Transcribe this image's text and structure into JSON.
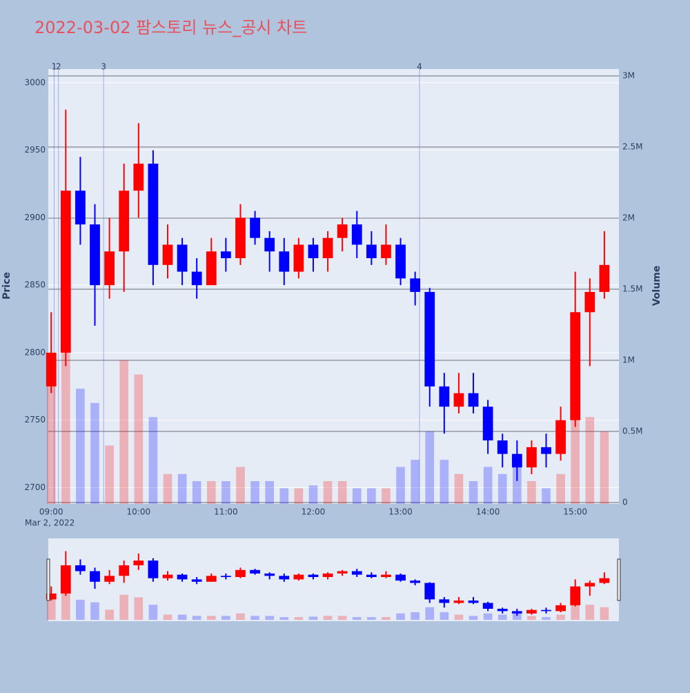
{
  "chart_data": {
    "type": "candlestick",
    "title": "2022-03-02 팜스토리 뉴스_공시 차트",
    "y_label": "Price",
    "y2_label": "Volume",
    "x_date_label": "Mar 2, 2022",
    "x": [
      "09:00",
      "09:10",
      "09:20",
      "09:30",
      "09:40",
      "09:50",
      "10:00",
      "10:10",
      "10:20",
      "10:30",
      "10:40",
      "10:50",
      "11:00",
      "11:10",
      "11:20",
      "11:30",
      "11:40",
      "11:50",
      "12:00",
      "12:10",
      "12:20",
      "12:30",
      "12:40",
      "12:50",
      "13:00",
      "13:10",
      "13:20",
      "13:30",
      "13:40",
      "13:50",
      "14:00",
      "14:10",
      "14:20",
      "14:30",
      "14:40",
      "14:50",
      "15:00",
      "15:10",
      "15:20"
    ],
    "open": [
      2775,
      2800,
      2920,
      2895,
      2850,
      2875,
      2920,
      2940,
      2865,
      2880,
      2860,
      2850,
      2875,
      2870,
      2900,
      2885,
      2875,
      2860,
      2880,
      2870,
      2885,
      2895,
      2880,
      2870,
      2880,
      2855,
      2845,
      2775,
      2760,
      2770,
      2760,
      2735,
      2725,
      2715,
      2730,
      2725,
      2750,
      2830,
      2845
    ],
    "high": [
      2830,
      2980,
      2945,
      2910,
      2900,
      2940,
      2970,
      2950,
      2895,
      2885,
      2870,
      2885,
      2885,
      2910,
      2905,
      2890,
      2885,
      2885,
      2885,
      2890,
      2900,
      2905,
      2890,
      2895,
      2885,
      2860,
      2848,
      2785,
      2785,
      2785,
      2765,
      2740,
      2735,
      2735,
      2740,
      2760,
      2860,
      2855,
      2890
    ],
    "low": [
      2770,
      2790,
      2880,
      2820,
      2840,
      2845,
      2900,
      2850,
      2855,
      2850,
      2840,
      2850,
      2860,
      2865,
      2880,
      2860,
      2850,
      2855,
      2860,
      2860,
      2875,
      2870,
      2865,
      2865,
      2850,
      2835,
      2760,
      2740,
      2755,
      2755,
      2725,
      2715,
      2705,
      2710,
      2715,
      2720,
      2745,
      2790,
      2840
    ],
    "close": [
      2800,
      2920,
      2895,
      2850,
      2875,
      2920,
      2940,
      2865,
      2880,
      2860,
      2850,
      2875,
      2870,
      2900,
      2885,
      2875,
      2860,
      2880,
      2870,
      2885,
      2895,
      2880,
      2870,
      2880,
      2855,
      2845,
      2775,
      2760,
      2770,
      2760,
      2735,
      2725,
      2715,
      2730,
      2725,
      2750,
      2830,
      2845,
      2865
    ],
    "volume": [
      900000,
      1500000,
      800000,
      700000,
      400000,
      1000000,
      900000,
      600000,
      200000,
      200000,
      150000,
      150000,
      150000,
      250000,
      150000,
      150000,
      100000,
      100000,
      120000,
      150000,
      150000,
      100000,
      100000,
      100000,
      250000,
      300000,
      500000,
      300000,
      200000,
      150000,
      250000,
      200000,
      250000,
      150000,
      100000,
      200000,
      700000,
      600000,
      500000
    ],
    "up_color": "#ff0000",
    "down_color": "#0000ff",
    "xlim": [
      "08:58",
      "15:30"
    ],
    "xticks": [
      "09:00",
      "10:00",
      "11:00",
      "12:00",
      "13:00",
      "14:00",
      "15:00"
    ],
    "ylim": [
      2688,
      3005
    ],
    "yticks": [
      2700,
      2750,
      2800,
      2850,
      2900,
      2950,
      3000
    ],
    "y2lim": [
      -10000,
      3000000
    ],
    "y2ticks": [
      0,
      {
        "value": 500000,
        "label": "0.5M"
      },
      {
        "value": 1000000,
        "label": "1M"
      },
      {
        "value": 1500000,
        "label": "1.5M"
      },
      {
        "value": 2000000,
        "label": "2M"
      },
      {
        "value": 2500000,
        "label": "2.5M"
      },
      {
        "value": 3000000,
        "label": "3M"
      }
    ],
    "annotations": [
      {
        "x": "09:02",
        "label": "1"
      },
      {
        "x": "09:05",
        "label": "2"
      },
      {
        "x": "09:36",
        "label": "3"
      },
      {
        "x": "13:13",
        "label": "4"
      }
    ],
    "grid": true,
    "range_slider": true
  }
}
